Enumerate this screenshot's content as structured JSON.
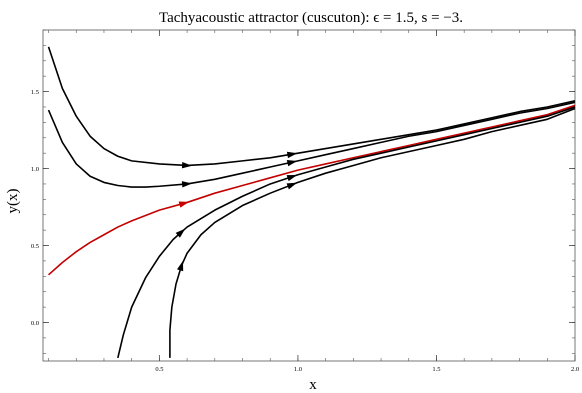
{
  "chart_data": {
    "type": "line",
    "title": "Tachyacoustic attractor (cuscuton): ϵ = 1.5, s = −3.",
    "xlabel": "x",
    "ylabel": "y(x)",
    "xlim": [
      0.08,
      2.0
    ],
    "ylim": [
      -0.25,
      1.9
    ],
    "x_ticks": [
      {
        "value": 0.5,
        "label": "0.5"
      },
      {
        "value": 1.0,
        "label": "1.0"
      },
      {
        "value": 1.5,
        "label": "1.5"
      },
      {
        "value": 2.0,
        "label": "2.0"
      }
    ],
    "y_ticks": [
      {
        "value": 0.0,
        "label": "0.0"
      },
      {
        "value": 0.5,
        "label": "0.5"
      },
      {
        "value": 1.0,
        "label": "1.0"
      },
      {
        "value": 1.5,
        "label": "1.5"
      }
    ],
    "grid": false,
    "series": [
      {
        "color": "#000000",
        "points": [
          [
            0.1,
            1.79
          ],
          [
            0.15,
            1.52
          ],
          [
            0.2,
            1.34
          ],
          [
            0.25,
            1.21
          ],
          [
            0.3,
            1.13
          ],
          [
            0.35,
            1.08
          ],
          [
            0.4,
            1.05
          ],
          [
            0.5,
            1.03
          ],
          [
            0.6,
            1.02
          ],
          [
            0.7,
            1.03
          ],
          [
            0.8,
            1.05
          ],
          [
            0.9,
            1.07
          ],
          [
            1.0,
            1.1
          ],
          [
            1.1,
            1.13
          ],
          [
            1.2,
            1.16
          ],
          [
            1.3,
            1.19
          ],
          [
            1.4,
            1.22
          ],
          [
            1.5,
            1.25
          ],
          [
            1.6,
            1.29
          ],
          [
            1.7,
            1.33
          ],
          [
            1.8,
            1.37
          ],
          [
            1.9,
            1.4
          ],
          [
            2.0,
            1.44
          ]
        ],
        "arrows": [
          0.6,
          0.98
        ]
      },
      {
        "color": "#000000",
        "points": [
          [
            0.1,
            1.38
          ],
          [
            0.15,
            1.17
          ],
          [
            0.2,
            1.03
          ],
          [
            0.25,
            0.95
          ],
          [
            0.3,
            0.91
          ],
          [
            0.35,
            0.89
          ],
          [
            0.4,
            0.88
          ],
          [
            0.45,
            0.88
          ],
          [
            0.5,
            0.885
          ],
          [
            0.6,
            0.9
          ],
          [
            0.7,
            0.93
          ],
          [
            0.8,
            0.97
          ],
          [
            0.9,
            1.01
          ],
          [
            1.0,
            1.05
          ],
          [
            1.1,
            1.09
          ],
          [
            1.2,
            1.13
          ],
          [
            1.3,
            1.17
          ],
          [
            1.4,
            1.21
          ],
          [
            1.5,
            1.24
          ],
          [
            1.6,
            1.28
          ],
          [
            1.7,
            1.32
          ],
          [
            1.8,
            1.36
          ],
          [
            1.9,
            1.39
          ],
          [
            2.0,
            1.43
          ]
        ],
        "arrows": [
          0.6,
          0.98
        ]
      },
      {
        "color": "#c40000",
        "points": [
          [
            0.1,
            0.31
          ],
          [
            0.15,
            0.39
          ],
          [
            0.2,
            0.46
          ],
          [
            0.25,
            0.52
          ],
          [
            0.3,
            0.57
          ],
          [
            0.35,
            0.62
          ],
          [
            0.4,
            0.66
          ],
          [
            0.5,
            0.73
          ],
          [
            0.6,
            0.78
          ],
          [
            0.7,
            0.84
          ],
          [
            0.8,
            0.89
          ],
          [
            0.9,
            0.94
          ],
          [
            1.0,
            0.99
          ],
          [
            1.1,
            1.03
          ],
          [
            1.2,
            1.07
          ],
          [
            1.3,
            1.11
          ],
          [
            1.4,
            1.15
          ],
          [
            1.5,
            1.19
          ],
          [
            1.6,
            1.23
          ],
          [
            1.7,
            1.27
          ],
          [
            1.8,
            1.31
          ],
          [
            1.9,
            1.35
          ],
          [
            2.0,
            1.41
          ]
        ],
        "arrows": [
          0.59
        ]
      },
      {
        "color": "#000000",
        "points": [
          [
            0.35,
            -0.23
          ],
          [
            0.37,
            -0.08
          ],
          [
            0.4,
            0.1
          ],
          [
            0.45,
            0.29
          ],
          [
            0.5,
            0.43
          ],
          [
            0.55,
            0.54
          ],
          [
            0.6,
            0.62
          ],
          [
            0.7,
            0.73
          ],
          [
            0.8,
            0.82
          ],
          [
            0.9,
            0.9
          ],
          [
            1.0,
            0.96
          ],
          [
            1.1,
            1.01
          ],
          [
            1.2,
            1.06
          ],
          [
            1.3,
            1.1
          ],
          [
            1.4,
            1.14
          ],
          [
            1.5,
            1.18
          ],
          [
            1.6,
            1.22
          ],
          [
            1.7,
            1.26
          ],
          [
            1.8,
            1.3
          ],
          [
            1.9,
            1.34
          ],
          [
            2.0,
            1.4
          ]
        ],
        "arrows": [
          0.58,
          0.98
        ]
      },
      {
        "color": "#000000",
        "points": [
          [
            0.538,
            -0.23
          ],
          [
            0.538,
            -0.05
          ],
          [
            0.545,
            0.1
          ],
          [
            0.56,
            0.25
          ],
          [
            0.58,
            0.37
          ],
          [
            0.6,
            0.45
          ],
          [
            0.65,
            0.57
          ],
          [
            0.7,
            0.65
          ],
          [
            0.8,
            0.76
          ],
          [
            0.9,
            0.84
          ],
          [
            1.0,
            0.91
          ],
          [
            1.1,
            0.97
          ],
          [
            1.2,
            1.02
          ],
          [
            1.3,
            1.07
          ],
          [
            1.4,
            1.11
          ],
          [
            1.5,
            1.15
          ],
          [
            1.6,
            1.19
          ],
          [
            1.7,
            1.24
          ],
          [
            1.8,
            1.28
          ],
          [
            1.9,
            1.32
          ],
          [
            2.0,
            1.39
          ]
        ],
        "arrows": [
          0.58,
          0.98
        ]
      }
    ]
  }
}
